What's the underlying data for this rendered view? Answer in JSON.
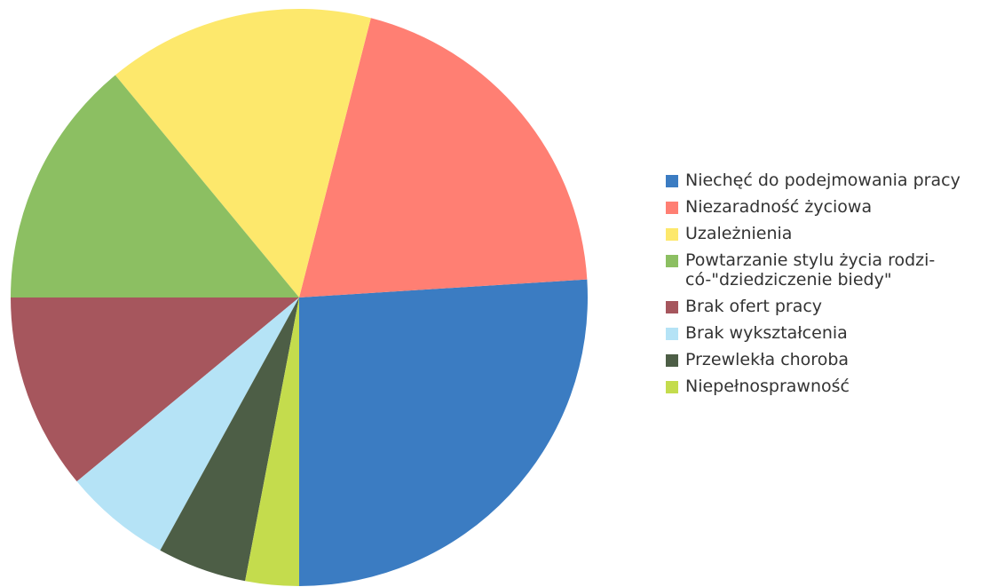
{
  "chart_data": {
    "type": "pie",
    "start_angle": 180,
    "direction": "counterclockwise",
    "categories": [
      "Niechęć do podejmowania pracy",
      "Niezaradność życiowa",
      "Uzależnienia",
      "Powtarzanie stylu życia rodzi-\ncó-\"dziedziczenie biedy\"",
      "Brak ofert pracy",
      "Brak wykształcenia",
      "Przewlekła choroba",
      "Niepełnosprawność"
    ],
    "values": [
      26,
      20,
      15,
      14,
      11,
      6,
      5,
      3
    ],
    "colors": [
      "#3b7cc2",
      "#ff7f73",
      "#fde86c",
      "#8cbf62",
      "#a6565d",
      "#b5e3f6",
      "#4d5e46",
      "#c4dc4d"
    ],
    "legend": "right"
  }
}
